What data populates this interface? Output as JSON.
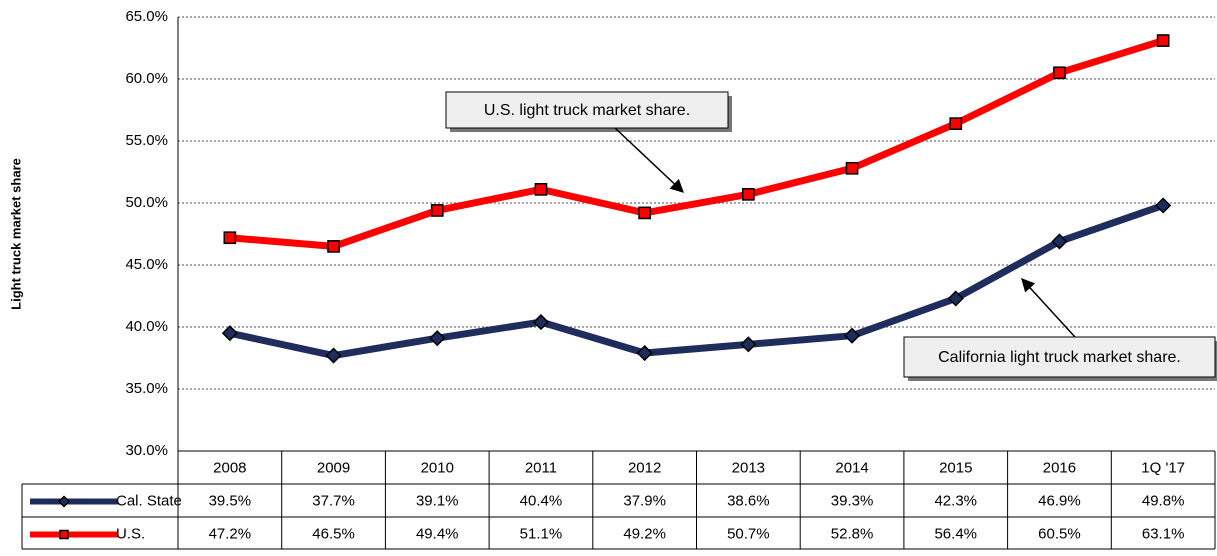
{
  "chart_data": {
    "type": "line",
    "y_label": "Light truck market share",
    "categories": [
      "2008",
      "2009",
      "2010",
      "2011",
      "2012",
      "2013",
      "2014",
      "2015",
      "2016",
      "1Q '17"
    ],
    "series": [
      {
        "name": "Cal. State",
        "color": "#1f2d5c",
        "marker": "diamond",
        "values": [
          39.5,
          37.7,
          39.1,
          40.4,
          37.9,
          38.6,
          39.3,
          42.3,
          46.9,
          49.8
        ],
        "value_labels": [
          "39.5%",
          "37.7%",
          "39.1%",
          "40.4%",
          "37.9%",
          "38.6%",
          "39.3%",
          "42.3%",
          "46.9%",
          "49.8%"
        ]
      },
      {
        "name": "U.S.",
        "color": "#ff0000",
        "marker": "square",
        "values": [
          47.2,
          46.5,
          49.4,
          51.1,
          49.2,
          50.7,
          52.8,
          56.4,
          60.5,
          63.1
        ],
        "value_labels": [
          "47.2%",
          "46.5%",
          "49.4%",
          "51.1%",
          "49.2%",
          "50.7%",
          "52.8%",
          "56.4%",
          "60.5%",
          "63.1%"
        ]
      }
    ],
    "ylim": [
      30,
      65
    ],
    "yticks": [
      {
        "value": 30,
        "label": "30.0%"
      },
      {
        "value": 35,
        "label": "35.0%"
      },
      {
        "value": 40,
        "label": "40.0%"
      },
      {
        "value": 45,
        "label": "45.0%"
      },
      {
        "value": 50,
        "label": "50.0%"
      },
      {
        "value": 55,
        "label": "55.0%"
      },
      {
        "value": 60,
        "label": "60.0%"
      },
      {
        "value": 65,
        "label": "65.0%"
      }
    ],
    "grid": true,
    "annotations": [
      {
        "text": "U.S. light truck market share."
      },
      {
        "text": "California light truck market share."
      }
    ]
  }
}
